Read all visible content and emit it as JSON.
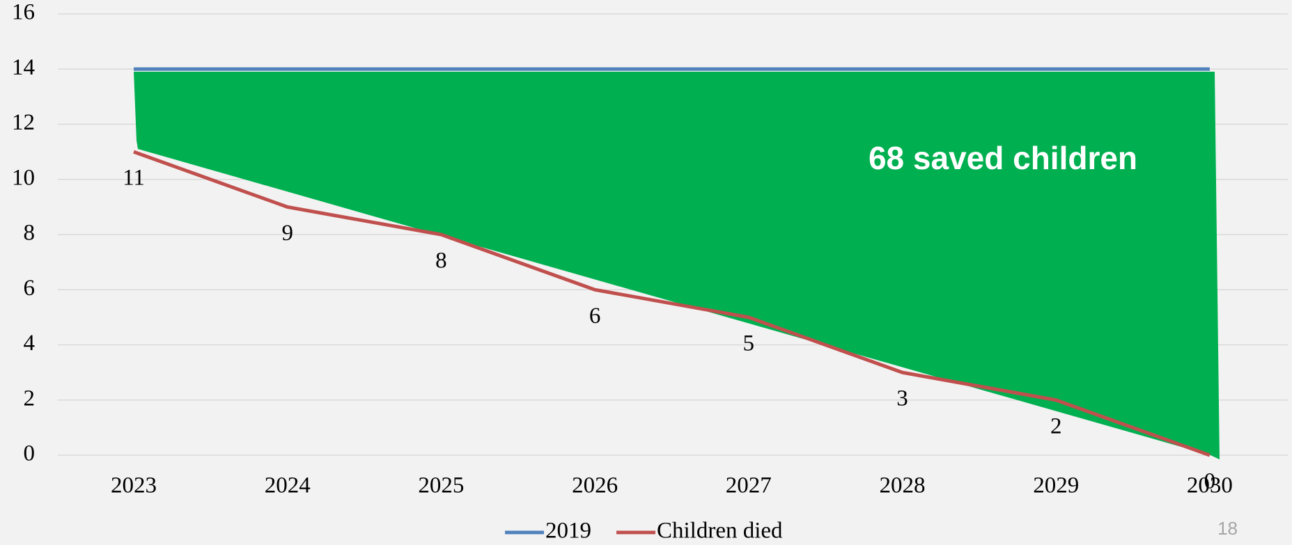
{
  "chart_data": {
    "type": "line",
    "categories": [
      "2023",
      "2024",
      "2025",
      "2026",
      "2027",
      "2028",
      "2029",
      "2030"
    ],
    "series": [
      {
        "name": "2019",
        "color": "#4f81bd",
        "values": [
          14,
          14,
          14,
          14,
          14,
          14,
          14,
          14
        ]
      },
      {
        "name": "Children died",
        "color": "#c0504d",
        "values": [
          11,
          9,
          8,
          6,
          5,
          3,
          2,
          0
        ]
      }
    ],
    "ylim": [
      0,
      16
    ],
    "yticks": [
      0,
      2,
      4,
      6,
      8,
      10,
      12,
      14,
      16
    ],
    "grid": true,
    "legend": "bottom",
    "annotation": "68 saved children"
  },
  "page_number": "18"
}
